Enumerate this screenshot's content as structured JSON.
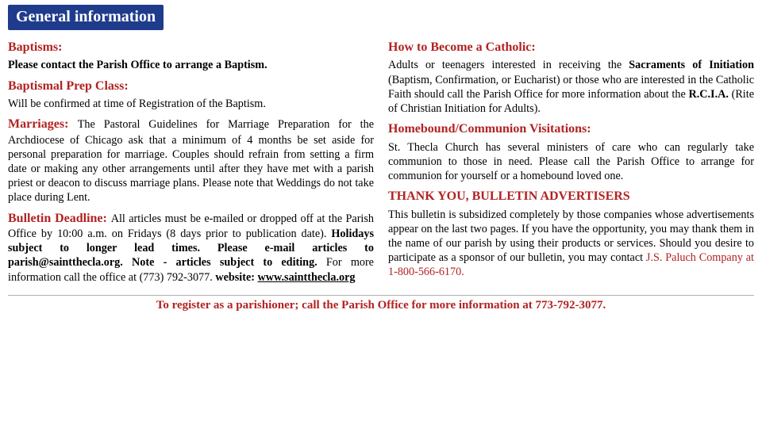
{
  "header": "General information",
  "left": {
    "baptisms_head": "Baptisms:",
    "baptisms_text": "Please contact the Parish Office to arrange a Baptism.",
    "bapt_prep_head": "Baptismal Prep Class:",
    "bapt_prep_text": "Will be confirmed at time of Registration of the Baptism.",
    "marriages_head": "Marriages: ",
    "marriages_text": "The Pastoral Guidelines for Marriage Preparation for the Archdiocese of Chicago ask that a minimum of 4 months be set aside for personal preparation for marriage. Couples should refrain from setting a firm date or making any other arrangements until after they have met with a parish priest or deacon to discuss marriage plans. Please note that Weddings do not take place during Lent.",
    "bulletin_head": "Bulletin Deadline: ",
    "bulletin_a": "All articles must be e-mailed or dropped off at the Parish Office by 10:00 a.m. on Fridays (8 days prior to publication date). ",
    "bulletin_b": "Holidays subject to longer lead times. Please e-mail articles to parish@saintthecla.org. Note - articles subject to editing.",
    "bulletin_c": " For more information call the office at (773) 792-3077. ",
    "bulletin_web_label": "website: ",
    "bulletin_web": "www.saintthecla.org"
  },
  "right": {
    "catholic_head": "How to Become a Catholic:",
    "catholic_a": "Adults or teenagers interested in receiving the ",
    "catholic_b": "Sacraments of Initiation",
    "catholic_c": " (Baptism, Confirmation, or Eucharist) or those who are interested in the Catholic Faith should call the Parish Office for more information about the ",
    "catholic_d": "R.C.I.A.",
    "catholic_e": " (Rite of Christian Initiation for Adults).",
    "homebound_head": "Homebound/Communion Visitations:",
    "homebound_text": "St. Thecla Church has several ministers of care who can regularly take communion to those in need. Please call the Parish Office to arrange for communion for yourself or a homebound loved one.",
    "thanks_head": "THANK YOU, BULLETIN ADVERTISERS",
    "thanks_text": "This bulletin is subsidized completely by those companies whose advertisements appear on the last two pages. If you have the opportunity, you may thank them in the name of our parish by using their products or services. Should you desire to participate as a sponsor of our bulletin, you may contact ",
    "thanks_company": "J.S. Paluch Company at 1-800-566-6170."
  },
  "footer": "To register as a parishioner; call the Parish Office for more information at 773-792-3077."
}
